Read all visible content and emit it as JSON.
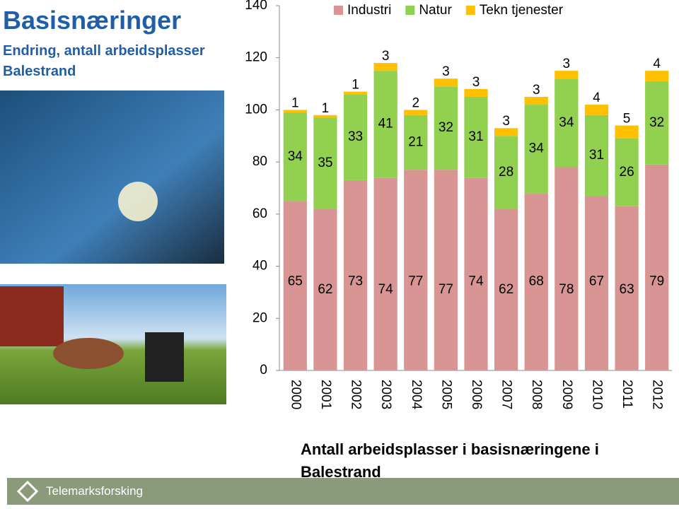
{
  "title": "Basisnæringer",
  "subtitle": "Endring,  antall arbeidsplasser Balestrand",
  "logo": "Telemarksforsking",
  "chart_data": {
    "type": "stacked-bar",
    "caption": "Antall arbeidsplasser i basisnæringene i Balestrand",
    "categories": [
      "2000",
      "2001",
      "2002",
      "2003",
      "2004",
      "2005",
      "2006",
      "2007",
      "2008",
      "2009",
      "2010",
      "2011",
      "2012"
    ],
    "series": [
      {
        "name": "Industri",
        "color": "#d99594",
        "values": [
          65,
          62,
          73,
          74,
          77,
          77,
          74,
          62,
          68,
          78,
          67,
          63,
          79
        ]
      },
      {
        "name": "Natur",
        "color": "#92d050",
        "values": [
          34,
          35,
          33,
          41,
          21,
          32,
          31,
          28,
          34,
          34,
          31,
          26,
          32
        ]
      },
      {
        "name": "Tekn tjenester",
        "color": "#ffc000",
        "values": [
          1,
          1,
          1,
          3,
          2,
          3,
          3,
          3,
          3,
          3,
          4,
          5,
          4
        ]
      }
    ],
    "ylim": [
      0,
      140
    ],
    "yticks": [
      0,
      20,
      40,
      60,
      80,
      100,
      120,
      140
    ],
    "legend": "top"
  }
}
